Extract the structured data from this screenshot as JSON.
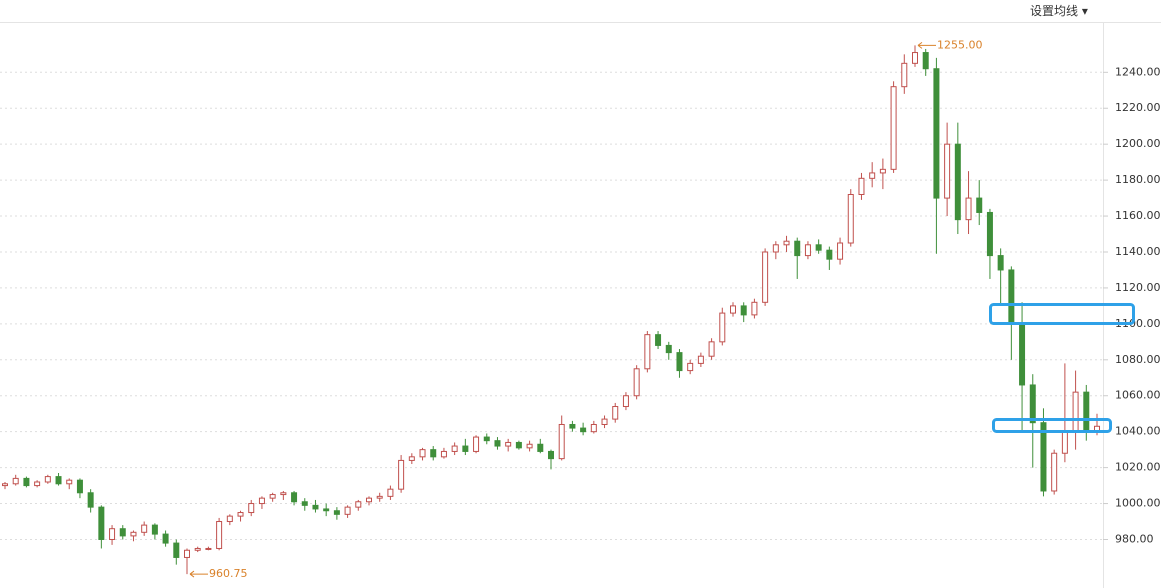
{
  "header": {
    "menu": "设置均线 ▾"
  },
  "chart_data": {
    "type": "candlestick",
    "ylim": [
      953,
      1268
    ],
    "yticks": [
      {
        "value": 980,
        "label": "980.00"
      },
      {
        "value": 1000,
        "label": "1000.00"
      },
      {
        "value": 1020,
        "label": "1020.00"
      },
      {
        "value": 1040,
        "label": "1040.00"
      },
      {
        "value": 1060,
        "label": "1060.00"
      },
      {
        "value": 1080,
        "label": "1080.00"
      },
      {
        "value": 1100,
        "label": "1100.00"
      },
      {
        "value": 1120,
        "label": "1120.00"
      },
      {
        "value": 1140,
        "label": "1140.00"
      },
      {
        "value": 1160,
        "label": "1160.00"
      },
      {
        "value": 1180,
        "label": "1180.00"
      },
      {
        "value": 1200,
        "label": "1200.00"
      },
      {
        "value": 1220,
        "label": "1220.00"
      },
      {
        "value": 1240,
        "label": "1240.00"
      }
    ],
    "grid": true,
    "up_color": "#c0504d",
    "down_color": "#3f8f3a",
    "candles": [
      [
        1010,
        1012,
        1008,
        1011
      ],
      [
        1011,
        1016,
        1010,
        1014
      ],
      [
        1014,
        1015,
        1009,
        1010
      ],
      [
        1010,
        1013,
        1009,
        1012
      ],
      [
        1012,
        1016,
        1011,
        1015
      ],
      [
        1015,
        1017,
        1010,
        1011
      ],
      [
        1011,
        1014,
        1008,
        1013
      ],
      [
        1013,
        1014,
        1003,
        1006
      ],
      [
        1006,
        1008,
        995,
        998
      ],
      [
        998,
        999,
        975,
        980
      ],
      [
        980,
        988,
        977,
        986
      ],
      [
        986,
        988,
        980,
        982
      ],
      [
        982,
        985,
        979,
        984
      ],
      [
        984,
        990,
        982,
        988
      ],
      [
        988,
        989,
        980,
        983
      ],
      [
        983,
        985,
        976,
        978
      ],
      [
        978,
        980,
        966,
        970
      ],
      [
        970,
        975,
        960.75,
        974
      ],
      [
        974,
        976,
        973,
        975
      ],
      [
        975,
        976,
        974,
        975
      ],
      [
        975,
        992,
        974,
        990
      ],
      [
        990,
        994,
        988,
        993
      ],
      [
        993,
        996,
        990,
        995
      ],
      [
        995,
        1002,
        993,
        1000
      ],
      [
        1000,
        1004,
        997,
        1003
      ],
      [
        1003,
        1006,
        1001,
        1005
      ],
      [
        1005,
        1007,
        1002,
        1006
      ],
      [
        1006,
        1007,
        999,
        1001
      ],
      [
        1001,
        1003,
        996,
        999
      ],
      [
        999,
        1002,
        995,
        997
      ],
      [
        997,
        1000,
        993,
        996
      ],
      [
        996,
        998,
        991,
        994
      ],
      [
        994,
        999,
        992,
        998
      ],
      [
        998,
        1002,
        996,
        1001
      ],
      [
        1001,
        1004,
        999,
        1003
      ],
      [
        1003,
        1006,
        1001,
        1004
      ],
      [
        1004,
        1010,
        1002,
        1008
      ],
      [
        1008,
        1027,
        1006,
        1024
      ],
      [
        1024,
        1028,
        1022,
        1026
      ],
      [
        1026,
        1031,
        1024,
        1030
      ],
      [
        1030,
        1032,
        1024,
        1026
      ],
      [
        1026,
        1031,
        1025,
        1029
      ],
      [
        1029,
        1034,
        1027,
        1032
      ],
      [
        1032,
        1036,
        1027,
        1029
      ],
      [
        1029,
        1038,
        1028,
        1037
      ],
      [
        1037,
        1039,
        1033,
        1035
      ],
      [
        1035,
        1037,
        1030,
        1032
      ],
      [
        1032,
        1036,
        1029,
        1034
      ],
      [
        1034,
        1035,
        1030,
        1031
      ],
      [
        1031,
        1035,
        1029,
        1033
      ],
      [
        1033,
        1036,
        1028,
        1029
      ],
      [
        1029,
        1030,
        1019,
        1025
      ],
      [
        1025,
        1049,
        1024,
        1044
      ],
      [
        1044,
        1046,
        1040,
        1042
      ],
      [
        1042,
        1045,
        1038,
        1040
      ],
      [
        1040,
        1046,
        1039,
        1044
      ],
      [
        1044,
        1049,
        1042,
        1047
      ],
      [
        1047,
        1056,
        1045,
        1054
      ],
      [
        1054,
        1062,
        1052,
        1060
      ],
      [
        1060,
        1077,
        1058,
        1075
      ],
      [
        1075,
        1096,
        1073,
        1094
      ],
      [
        1094,
        1096,
        1086,
        1088
      ],
      [
        1088,
        1090,
        1080,
        1084
      ],
      [
        1084,
        1086,
        1070,
        1074
      ],
      [
        1074,
        1080,
        1072,
        1078
      ],
      [
        1078,
        1084,
        1076,
        1082
      ],
      [
        1082,
        1092,
        1080,
        1090
      ],
      [
        1090,
        1109,
        1088,
        1106
      ],
      [
        1106,
        1112,
        1104,
        1110
      ],
      [
        1110,
        1112,
        1101,
        1105
      ],
      [
        1105,
        1114,
        1103,
        1112
      ],
      [
        1112,
        1142,
        1110,
        1140
      ],
      [
        1140,
        1146,
        1136,
        1144
      ],
      [
        1144,
        1149,
        1140,
        1146
      ],
      [
        1146,
        1148,
        1125,
        1138
      ],
      [
        1138,
        1146,
        1136,
        1144
      ],
      [
        1144,
        1147,
        1139,
        1141
      ],
      [
        1141,
        1143,
        1130,
        1136
      ],
      [
        1136,
        1148,
        1133,
        1145
      ],
      [
        1145,
        1175,
        1143,
        1172
      ],
      [
        1172,
        1184,
        1169,
        1181
      ],
      [
        1181,
        1190,
        1176,
        1184
      ],
      [
        1184,
        1192,
        1175,
        1186
      ],
      [
        1186,
        1235,
        1184,
        1232
      ],
      [
        1232,
        1250,
        1228,
        1245
      ],
      [
        1245,
        1255,
        1243,
        1251
      ],
      [
        1251,
        1253,
        1238,
        1242
      ],
      [
        1242,
        1248,
        1139,
        1170
      ],
      [
        1170,
        1212,
        1160,
        1200
      ],
      [
        1200,
        1212,
        1150,
        1158
      ],
      [
        1158,
        1185,
        1150,
        1170
      ],
      [
        1170,
        1180,
        1155,
        1162
      ],
      [
        1162,
        1164,
        1125,
        1138
      ],
      [
        1138,
        1142,
        1110,
        1130
      ],
      [
        1130,
        1132,
        1080,
        1100
      ],
      [
        1100,
        1112,
        1040,
        1066
      ],
      [
        1066,
        1072,
        1020,
        1045
      ],
      [
        1045,
        1053,
        1004,
        1007
      ],
      [
        1007,
        1030,
        1005,
        1028
      ],
      [
        1028,
        1078,
        1023,
        1040
      ],
      [
        1040,
        1074,
        1030,
        1062
      ],
      [
        1062,
        1066,
        1035,
        1040
      ],
      [
        1040,
        1050,
        1038,
        1043
      ]
    ],
    "annotations": [
      {
        "value": 1255,
        "label": "1255.00"
      },
      {
        "value": 960.75,
        "label": "960.75"
      }
    ]
  }
}
